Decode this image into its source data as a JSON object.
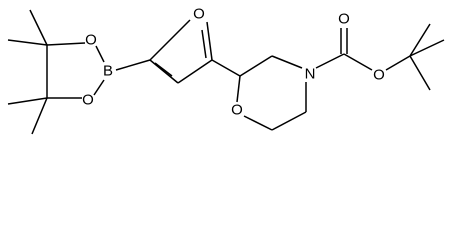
{
  "atoms": [
    {
      "label": "O"
    },
    {
      "label": "B"
    },
    {
      "label": "O"
    },
    {
      "label": "O"
    },
    {
      "label": "O"
    },
    {
      "label": "N"
    },
    {
      "label": "O"
    },
    {
      "label": "O"
    }
  ]
}
